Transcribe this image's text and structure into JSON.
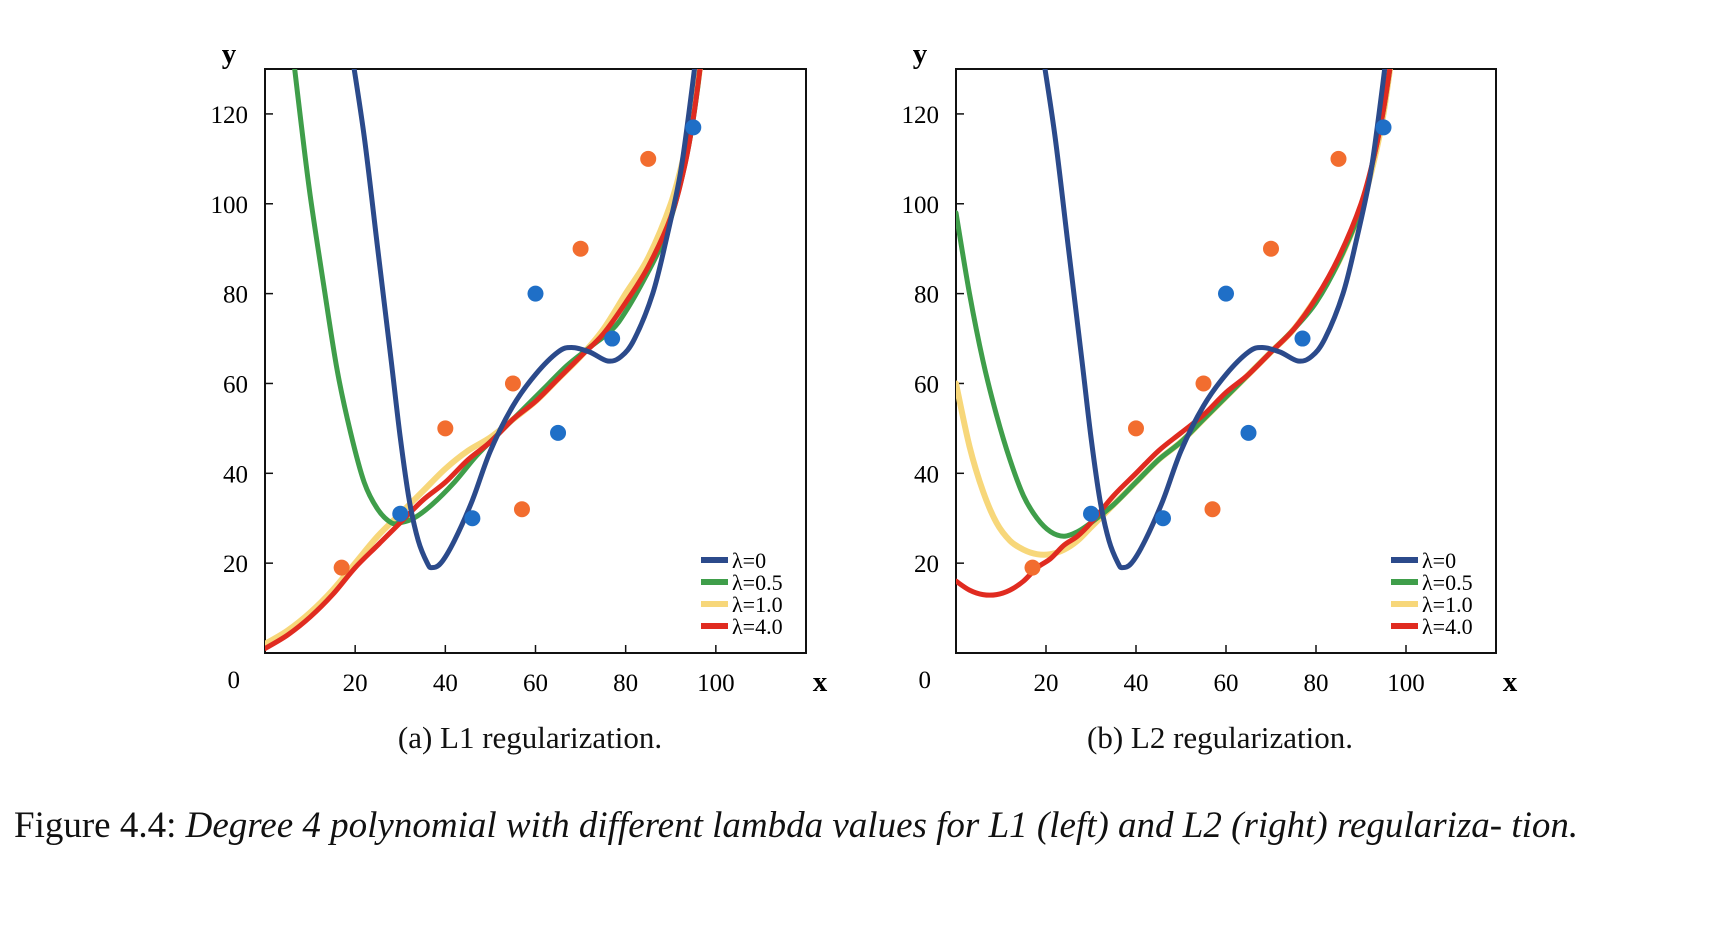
{
  "figure": {
    "label": "Figure 4.4:",
    "text": "Degree 4 polynomial with different lambda values for L1 (left) and L2 (right) regulariza- tion."
  },
  "colors": {
    "lambda_0": "#2b4a8b",
    "lambda_0_5": "#3f9e4a",
    "lambda_1_0": "#f7d77a",
    "lambda_4_0": "#e02b20",
    "points_blue": "#1f6fc7",
    "points_orange": "#f26d2f"
  },
  "chart_data": [
    {
      "type": "line",
      "caption": "(a) L1 regularization.",
      "xlabel": "x",
      "ylabel": "y",
      "origin_label": "0",
      "xlim": [
        0,
        120
      ],
      "ylim": [
        0,
        130
      ],
      "xticks": [
        20,
        40,
        60,
        80,
        100
      ],
      "yticks": [
        20,
        40,
        60,
        80,
        100,
        120
      ],
      "legend_position": "bottom-right",
      "points_blue": [
        [
          30,
          31
        ],
        [
          46,
          30
        ],
        [
          60,
          80
        ],
        [
          65,
          49
        ],
        [
          77,
          70
        ],
        [
          95,
          117
        ]
      ],
      "points_orange": [
        [
          17,
          19
        ],
        [
          40,
          50
        ],
        [
          55,
          60
        ],
        [
          57,
          32
        ],
        [
          70,
          90
        ],
        [
          85,
          110
        ]
      ],
      "series": [
        {
          "name": "λ=0",
          "color": "#2b4a8b",
          "points": [
            [
              19,
              135
            ],
            [
              22,
              115
            ],
            [
              25,
              90
            ],
            [
              28,
              65
            ],
            [
              30,
              48
            ],
            [
              32,
              34
            ],
            [
              34,
              25
            ],
            [
              36,
              20
            ],
            [
              37,
              19
            ],
            [
              39,
              20
            ],
            [
              42,
              25
            ],
            [
              46,
              34
            ],
            [
              50,
              45
            ],
            [
              55,
              55
            ],
            [
              60,
              62
            ],
            [
              65,
              67
            ],
            [
              68,
              68
            ],
            [
              72,
              67
            ],
            [
              76,
              65
            ],
            [
              79,
              66
            ],
            [
              82,
              70
            ],
            [
              86,
              80
            ],
            [
              89,
              92
            ],
            [
              92,
              106
            ],
            [
              94,
              120
            ],
            [
              96,
              136
            ]
          ]
        },
        {
          "name": "λ=0.5",
          "color": "#3f9e4a",
          "points": [
            [
              6,
              135
            ],
            [
              8,
              118
            ],
            [
              10,
              102
            ],
            [
              13,
              82
            ],
            [
              16,
              63
            ],
            [
              19,
              49
            ],
            [
              22,
              38
            ],
            [
              25,
              32
            ],
            [
              28,
              29
            ],
            [
              30,
              29
            ],
            [
              33,
              30
            ],
            [
              37,
              33
            ],
            [
              42,
              38
            ],
            [
              47,
              44
            ],
            [
              52,
              49
            ],
            [
              57,
              54
            ],
            [
              62,
              59
            ],
            [
              67,
              64
            ],
            [
              72,
              68
            ],
            [
              77,
              72
            ],
            [
              80,
              76
            ],
            [
              84,
              83
            ],
            [
              88,
              91
            ],
            [
              91,
              100
            ],
            [
              94,
              113
            ],
            [
              96,
              126
            ],
            [
              97,
              136
            ]
          ]
        },
        {
          "name": "λ=1.0",
          "color": "#f7d77a",
          "points": [
            [
              0,
              2
            ],
            [
              5,
              5
            ],
            [
              10,
              9
            ],
            [
              15,
              14
            ],
            [
              20,
              20
            ],
            [
              25,
              26
            ],
            [
              30,
              31
            ],
            [
              35,
              36
            ],
            [
              40,
              41
            ],
            [
              45,
              45
            ],
            [
              50,
              48
            ],
            [
              55,
              52
            ],
            [
              60,
              56
            ],
            [
              65,
              61
            ],
            [
              70,
              66
            ],
            [
              75,
              72
            ],
            [
              80,
              80
            ],
            [
              85,
              88
            ],
            [
              90,
              100
            ],
            [
              93,
              111
            ],
            [
              95,
              120
            ],
            [
              97,
              134
            ]
          ]
        },
        {
          "name": "λ=4.0",
          "color": "#e02b20",
          "points": [
            [
              0,
              1
            ],
            [
              5,
              4
            ],
            [
              10,
              8
            ],
            [
              15,
              13
            ],
            [
              20,
              19
            ],
            [
              25,
              24
            ],
            [
              30,
              29
            ],
            [
              35,
              34
            ],
            [
              40,
              38
            ],
            [
              45,
              43
            ],
            [
              50,
              47
            ],
            [
              55,
              52
            ],
            [
              60,
              56
            ],
            [
              65,
              61
            ],
            [
              70,
              66
            ],
            [
              75,
              71
            ],
            [
              80,
              78
            ],
            [
              85,
              86
            ],
            [
              90,
              97
            ],
            [
              93,
              108
            ],
            [
              95,
              119
            ],
            [
              97,
              134
            ]
          ]
        }
      ]
    },
    {
      "type": "line",
      "caption": "(b) L2 regularization.",
      "xlabel": "x",
      "ylabel": "y",
      "origin_label": "0",
      "xlim": [
        0,
        120
      ],
      "ylim": [
        0,
        130
      ],
      "xticks": [
        20,
        40,
        60,
        80,
        100
      ],
      "yticks": [
        20,
        40,
        60,
        80,
        100,
        120
      ],
      "legend_position": "bottom-right",
      "points_blue": [
        [
          30,
          31
        ],
        [
          46,
          30
        ],
        [
          60,
          80
        ],
        [
          65,
          49
        ],
        [
          77,
          70
        ],
        [
          95,
          117
        ]
      ],
      "points_orange": [
        [
          17,
          19
        ],
        [
          40,
          50
        ],
        [
          55,
          60
        ],
        [
          57,
          32
        ],
        [
          70,
          90
        ],
        [
          85,
          110
        ]
      ],
      "series": [
        {
          "name": "λ=0",
          "color": "#2b4a8b",
          "points": [
            [
              19,
              135
            ],
            [
              22,
              115
            ],
            [
              25,
              90
            ],
            [
              28,
              65
            ],
            [
              30,
              48
            ],
            [
              32,
              34
            ],
            [
              34,
              25
            ],
            [
              36,
              20
            ],
            [
              37,
              19
            ],
            [
              39,
              20
            ],
            [
              42,
              25
            ],
            [
              46,
              34
            ],
            [
              50,
              45
            ],
            [
              55,
              55
            ],
            [
              60,
              62
            ],
            [
              65,
              67
            ],
            [
              68,
              68
            ],
            [
              72,
              67
            ],
            [
              76,
              65
            ],
            [
              79,
              66
            ],
            [
              82,
              70
            ],
            [
              86,
              80
            ],
            [
              89,
              92
            ],
            [
              92,
              106
            ],
            [
              94,
              120
            ],
            [
              96,
              136
            ]
          ]
        },
        {
          "name": "λ=0.5",
          "color": "#3f9e4a",
          "points": [
            [
              0,
              98
            ],
            [
              3,
              80
            ],
            [
              6,
              65
            ],
            [
              9,
              53
            ],
            [
              12,
              43
            ],
            [
              15,
              35
            ],
            [
              18,
              30
            ],
            [
              21,
              27
            ],
            [
              24,
              26
            ],
            [
              27,
              27
            ],
            [
              30,
              29
            ],
            [
              35,
              33
            ],
            [
              40,
              38
            ],
            [
              45,
              43
            ],
            [
              50,
              47
            ],
            [
              55,
              52
            ],
            [
              60,
              57
            ],
            [
              65,
              62
            ],
            [
              70,
              67
            ],
            [
              75,
              72
            ],
            [
              80,
              78
            ],
            [
              85,
              87
            ],
            [
              90,
              99
            ],
            [
              93,
              111
            ],
            [
              95,
              121
            ],
            [
              97,
              134
            ]
          ]
        },
        {
          "name": "λ=1.0",
          "color": "#f7d77a",
          "points": [
            [
              0,
              60
            ],
            [
              3,
              46
            ],
            [
              6,
              36
            ],
            [
              9,
              29
            ],
            [
              12,
              25
            ],
            [
              15,
              23
            ],
            [
              18,
              22
            ],
            [
              21,
              22
            ],
            [
              24,
              23
            ],
            [
              27,
              25
            ],
            [
              30,
              28
            ],
            [
              35,
              33
            ],
            [
              40,
              38
            ],
            [
              45,
              43
            ],
            [
              50,
              47
            ],
            [
              55,
              52
            ],
            [
              60,
              57
            ],
            [
              65,
              62
            ],
            [
              70,
              67
            ],
            [
              75,
              72
            ],
            [
              80,
              79
            ],
            [
              85,
              87
            ],
            [
              90,
              99
            ],
            [
              93,
              110
            ],
            [
              95,
              120
            ],
            [
              97,
              134
            ]
          ]
        },
        {
          "name": "λ=4.0",
          "color": "#e02b20",
          "points": [
            [
              0,
              16
            ],
            [
              3,
              14
            ],
            [
              6,
              13
            ],
            [
              9,
              13
            ],
            [
              12,
              14
            ],
            [
              15,
              16
            ],
            [
              18,
              19
            ],
            [
              21,
              21
            ],
            [
              24,
              24
            ],
            [
              27,
              26
            ],
            [
              30,
              29
            ],
            [
              35,
              35
            ],
            [
              40,
              40
            ],
            [
              45,
              45
            ],
            [
              50,
              49
            ],
            [
              55,
              53
            ],
            [
              60,
              58
            ],
            [
              65,
              62
            ],
            [
              70,
              67
            ],
            [
              75,
              72
            ],
            [
              80,
              79
            ],
            [
              85,
              88
            ],
            [
              90,
              100
            ],
            [
              93,
              111
            ],
            [
              95,
              121
            ],
            [
              97,
              134
            ]
          ]
        }
      ]
    }
  ]
}
